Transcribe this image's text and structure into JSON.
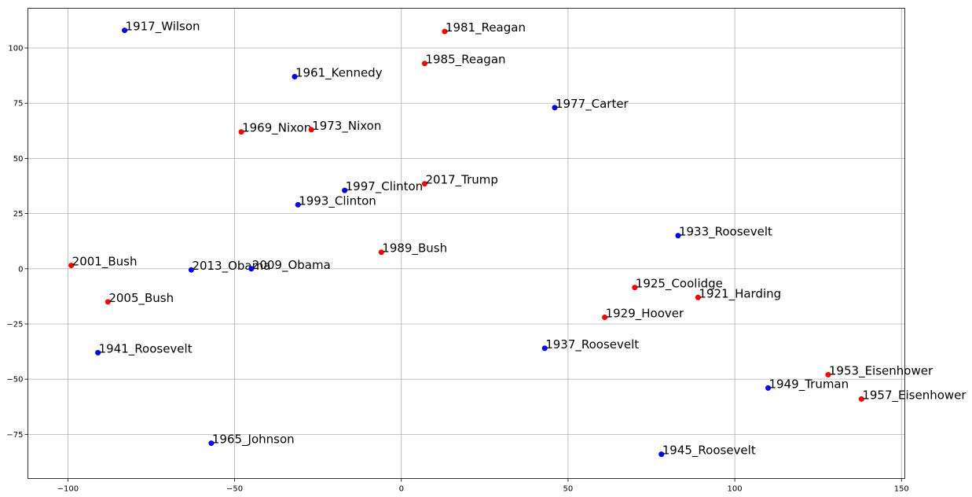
{
  "chart_data": {
    "type": "scatter",
    "xlim": [
      -112,
      151
    ],
    "ylim": [
      -95,
      118
    ],
    "xticks": [
      -100,
      -50,
      0,
      50,
      100,
      150
    ],
    "yticks": [
      -75,
      -50,
      -25,
      0,
      25,
      50,
      75,
      100
    ],
    "xtick_labels": [
      "−100",
      "−50",
      "0",
      "50",
      "100",
      "150"
    ],
    "ytick_labels": [
      "−75",
      "−50",
      "−25",
      "0",
      "25",
      "50",
      "75",
      "100"
    ],
    "grid": true,
    "colors": {
      "blue": "#0000ff",
      "red": "#ff0000"
    },
    "points": [
      {
        "label": "1917_Wilson",
        "x": -83,
        "y": 108,
        "color": "blue"
      },
      {
        "label": "1981_Reagan",
        "x": 13,
        "y": 107.5,
        "color": "red"
      },
      {
        "label": "1985_Reagan",
        "x": 7,
        "y": 93,
        "color": "red"
      },
      {
        "label": "1961_Kennedy",
        "x": -32,
        "y": 87,
        "color": "blue"
      },
      {
        "label": "1977_Carter",
        "x": 46,
        "y": 73,
        "color": "blue"
      },
      {
        "label": "1969_Nixon",
        "x": -48,
        "y": 62,
        "color": "red"
      },
      {
        "label": "1973_Nixon",
        "x": -27,
        "y": 63,
        "color": "red"
      },
      {
        "label": "2017_Trump",
        "x": 7,
        "y": 38.5,
        "color": "red"
      },
      {
        "label": "1997_Clinton",
        "x": -17,
        "y": 35.5,
        "color": "blue"
      },
      {
        "label": "1993_Clinton",
        "x": -31,
        "y": 29,
        "color": "blue"
      },
      {
        "label": "1933_Roosevelt",
        "x": 83,
        "y": 15,
        "color": "blue"
      },
      {
        "label": "1989_Bush",
        "x": -6,
        "y": 7.5,
        "color": "red"
      },
      {
        "label": "2001_Bush",
        "x": -99,
        "y": 1.5,
        "color": "red"
      },
      {
        "label": "2013_Obama",
        "x": -63,
        "y": -0.5,
        "color": "blue"
      },
      {
        "label": "2009_Obama",
        "x": -45,
        "y": 0,
        "color": "blue"
      },
      {
        "label": "1925_Coolidge",
        "x": 70,
        "y": -8.5,
        "color": "red"
      },
      {
        "label": "1921_Harding",
        "x": 89,
        "y": -13,
        "color": "red"
      },
      {
        "label": "2005_Bush",
        "x": -88,
        "y": -15,
        "color": "red"
      },
      {
        "label": "1929_Hoover",
        "x": 61,
        "y": -22,
        "color": "red"
      },
      {
        "label": "1937_Roosevelt",
        "x": 43,
        "y": -36,
        "color": "blue"
      },
      {
        "label": "1941_Roosevelt",
        "x": -91,
        "y": -38,
        "color": "blue"
      },
      {
        "label": "1953_Eisenhower",
        "x": 128,
        "y": -48,
        "color": "red"
      },
      {
        "label": "1949_Truman",
        "x": 110,
        "y": -54,
        "color": "blue"
      },
      {
        "label": "1957_Eisenhower",
        "x": 138,
        "y": -59,
        "color": "red"
      },
      {
        "label": "1965_Johnson",
        "x": -57,
        "y": -79,
        "color": "blue"
      },
      {
        "label": "1945_Roosevelt",
        "x": 78,
        "y": -84,
        "color": "blue"
      }
    ]
  }
}
